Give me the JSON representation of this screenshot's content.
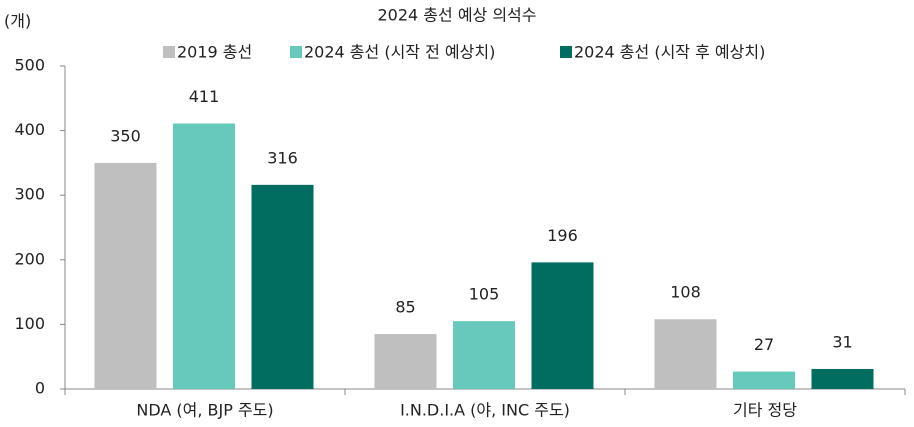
{
  "chart_data": {
    "type": "bar",
    "title": "2024 총선 예상 의석수",
    "y_label": "(개)",
    "categories": [
      "NDA (여, BJP 주도)",
      "I.N.D.I.A (야, INC 주도)",
      "기타 정당"
    ],
    "series": [
      {
        "name": "2019 총선",
        "color": "#bfbfbf",
        "values": [
          350,
          85,
          108
        ]
      },
      {
        "name": "2024 총선 (시작 전 예상치)",
        "color": "#66c9bb",
        "values": [
          411,
          105,
          27
        ]
      },
      {
        "name": "2024 총선 (시작 후 예상치)",
        "color": "#006d60",
        "values": [
          316,
          196,
          31
        ]
      }
    ],
    "ylim": [
      0,
      500
    ],
    "yticks": [
      0,
      100,
      200,
      300,
      400,
      500
    ],
    "grid": false,
    "legend": "top"
  }
}
